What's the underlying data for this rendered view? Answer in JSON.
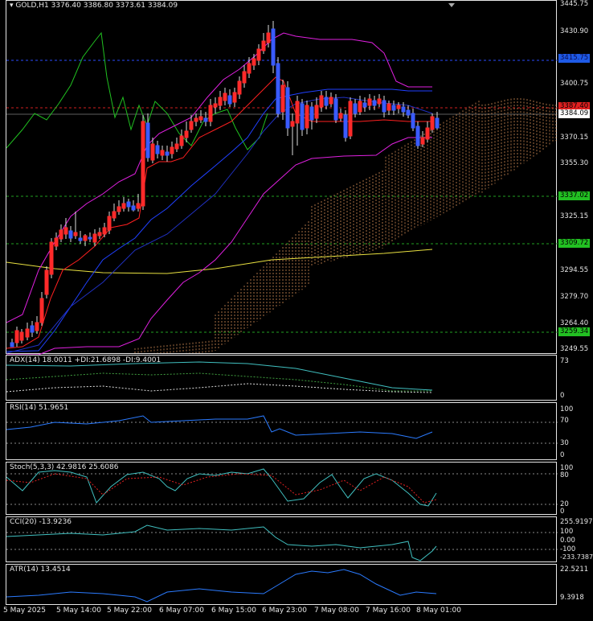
{
  "symbol_label": "GOLD,H1",
  "ohlc": "3376.40 3386.80 3373.61 3384.09",
  "price_axis": [
    "3445.75",
    "3430.90",
    "3400.75",
    "3370.15",
    "3355.30",
    "3325.15",
    "3294.55",
    "3279.70",
    "3264.40",
    "3249.55"
  ],
  "price_tags": [
    {
      "name": "level-3415",
      "text": "3415.75",
      "bg": "#1e5ae6",
      "fg": "#0a0a50"
    },
    {
      "name": "level-3387",
      "text": "3387.40",
      "bg": "#e02020",
      "fg": "#000000"
    },
    {
      "name": "level-current",
      "text": "3384.09",
      "bg": "#ffffff",
      "fg": "#000000"
    },
    {
      "name": "level-3337",
      "text": "3337.02",
      "bg": "#22c022",
      "fg": "#000000"
    },
    {
      "name": "level-3309",
      "text": "3309.72",
      "bg": "#22c022",
      "fg": "#000000"
    },
    {
      "name": "level-3259",
      "text": "3259.34",
      "bg": "#22c022",
      "fg": "#000000"
    }
  ],
  "indicators": {
    "adx": {
      "label": "ADX(14) 18.0011 +DI:21.6898 -DI:9.4001",
      "ticks": [
        "73",
        "0"
      ]
    },
    "rsi": {
      "label": "RSI(14) 51.9651",
      "ticks": [
        "100",
        "70",
        "30",
        "0"
      ]
    },
    "stoch": {
      "label": "Stoch(5,3,3) 42.9816 25.6086",
      "ticks": [
        "100",
        "80",
        "20",
        "0"
      ]
    },
    "cci": {
      "label": "CCI(20) -13.9236",
      "ticks": [
        "255.9197",
        "100",
        "0.00",
        "-100",
        "-233.7387"
      ]
    },
    "atr": {
      "label": "ATR(14) 13.4514",
      "ticks": [
        "22.5211",
        "9.3918"
      ]
    }
  },
  "time_axis": [
    "5 May 2025",
    "5 May 14:00",
    "5 May 22:00",
    "6 May 07:00",
    "6 May 15:00",
    "6 May 23:00",
    "7 May 08:00",
    "7 May 16:00",
    "8 May 01:00"
  ],
  "colors": {
    "up": "#ff2a2a",
    "down": "#3a5bff",
    "grid": "#ffffff",
    "bb": "#e020e0",
    "ma_fast": "#ff2020",
    "ma_slow": "#2030ff",
    "ma_long": "#e8e040",
    "cloud": "#f0a060",
    "rsi_line": "#2b7bff"
  }
}
